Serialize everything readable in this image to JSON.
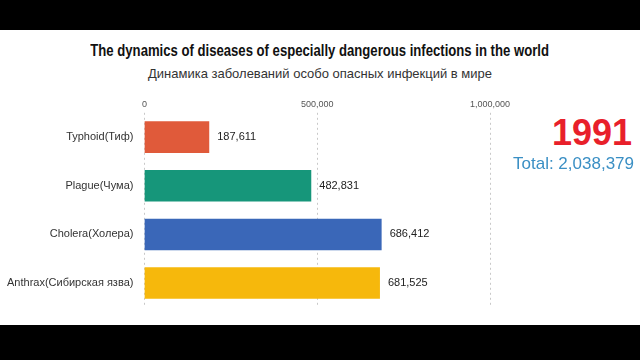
{
  "chart_data": {
    "type": "bar",
    "orientation": "horizontal",
    "title": "The dynamics of diseases of especially dangerous infections in the world",
    "subtitle": "Динамика заболеваний особо опасных инфекций в мире",
    "categories": [
      "Typhoid(Тиф)",
      "Plague(Чума)",
      "Cholera(Холера)",
      "Anthrax(Сибирская язва)"
    ],
    "values": [
      187611,
      482831,
      686412,
      681525
    ],
    "value_labels": [
      "187,611",
      "482,831",
      "686,412",
      "681,525"
    ],
    "colors": [
      "#e05a3a",
      "#16967a",
      "#3a67b8",
      "#f6b80c"
    ],
    "xlim": [
      0,
      1000000
    ],
    "xticks": [
      0,
      {
        "value": 500000,
        "label": "500,000"
      },
      {
        "value": 1000000,
        "label": "1,000,000"
      }
    ],
    "grid": true,
    "data_labels": true,
    "annotations": [
      {
        "text": "1991"
      },
      {
        "text": "Total: 2,038,379"
      }
    ]
  }
}
